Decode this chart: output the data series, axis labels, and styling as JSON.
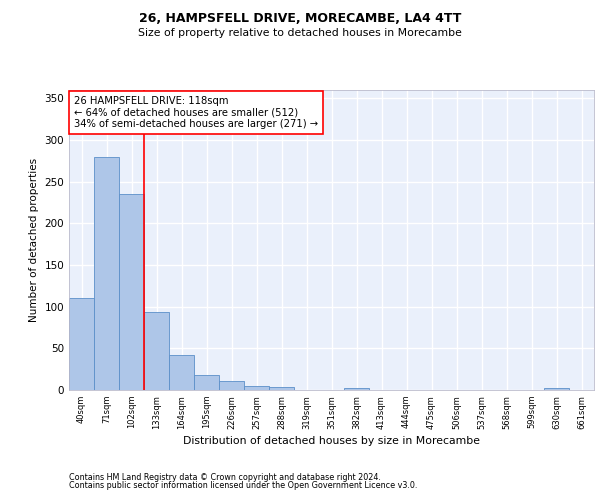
{
  "title_line1": "26, HAMPSFELL DRIVE, MORECAMBE, LA4 4TT",
  "title_line2": "Size of property relative to detached houses in Morecambe",
  "xlabel": "Distribution of detached houses by size in Morecambe",
  "ylabel": "Number of detached properties",
  "categories": [
    "40sqm",
    "71sqm",
    "102sqm",
    "133sqm",
    "164sqm",
    "195sqm",
    "226sqm",
    "257sqm",
    "288sqm",
    "319sqm",
    "351sqm",
    "382sqm",
    "413sqm",
    "444sqm",
    "475sqm",
    "506sqm",
    "537sqm",
    "568sqm",
    "599sqm",
    "630sqm",
    "661sqm"
  ],
  "values": [
    110,
    280,
    235,
    94,
    42,
    18,
    11,
    5,
    4,
    0,
    0,
    3,
    0,
    0,
    0,
    0,
    0,
    0,
    0,
    3,
    0
  ],
  "bar_color": "#aec6e8",
  "bar_edge_color": "#5b8fc9",
  "red_line_x": 2.5,
  "annotation_title": "26 HAMPSFELL DRIVE: 118sqm",
  "annotation_line2": "← 64% of detached houses are smaller (512)",
  "annotation_line3": "34% of semi-detached houses are larger (271) →",
  "ylim": [
    0,
    360
  ],
  "yticks": [
    0,
    50,
    100,
    150,
    200,
    250,
    300,
    350
  ],
  "background_color": "#eaf0fb",
  "grid_color": "#ffffff",
  "footer_line1": "Contains HM Land Registry data © Crown copyright and database right 2024.",
  "footer_line2": "Contains public sector information licensed under the Open Government Licence v3.0."
}
